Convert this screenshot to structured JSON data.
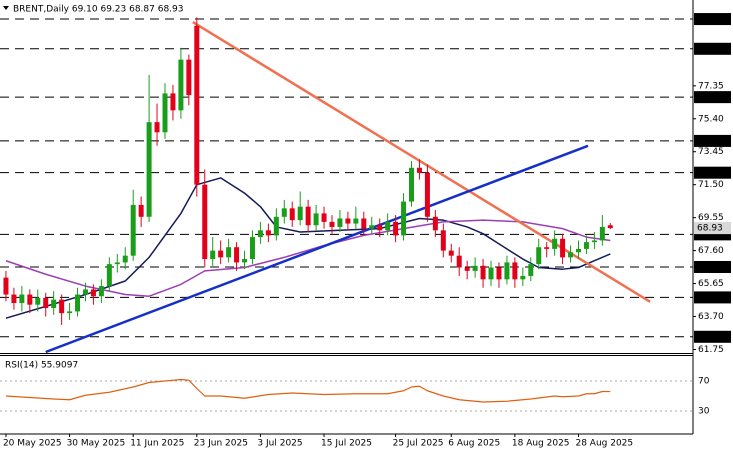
{
  "chart_data": {
    "type": "candlestick",
    "title": "BRENT,Daily  69.10 69.23 68.87 68.93",
    "categories": [
      "20 May 2025",
      null,
      null,
      null,
      null,
      null,
      null,
      null,
      "30 May 2025",
      null,
      null,
      null,
      null,
      null,
      null,
      null,
      "11 Jun 2025",
      null,
      null,
      null,
      null,
      null,
      null,
      null,
      "23 Jun 2025",
      null,
      null,
      null,
      null,
      null,
      null,
      null,
      "3 Jul 2025",
      null,
      null,
      null,
      null,
      null,
      null,
      null,
      "15 Jul 2025",
      null,
      null,
      null,
      null,
      null,
      null,
      null,
      null,
      "25 Jul 2025",
      null,
      null,
      null,
      null,
      null,
      null,
      "6 Aug 2025",
      null,
      null,
      null,
      null,
      null,
      null,
      null,
      "18 Aug 2025",
      null,
      null,
      null,
      null,
      null,
      null,
      null,
      "28 Aug 2025",
      null,
      null,
      null,
      null
    ],
    "open": [
      66.0,
      65.0,
      64.5,
      65.0,
      64.4,
      64.8,
      64.2,
      64.7,
      63.9,
      64.0,
      65.0,
      65.3,
      64.9,
      65.5,
      66.8,
      66.9,
      67.3,
      70.3,
      69.6,
      75.2,
      74.6,
      76.9,
      75.9,
      78.9,
      80.9,
      71.5,
      67.1,
      67.6,
      67.2,
      67.8,
      66.9,
      67.1,
      68.4,
      68.8,
      68.5,
      69.6,
      70.1,
      69.4,
      70.2,
      69.1,
      69.8,
      69.3,
      69.0,
      69.5,
      69.2,
      69.5,
      68.9,
      69.1,
      68.8,
      69.3,
      68.5,
      70.5,
      72.5,
      72.2,
      69.6,
      68.8,
      67.6,
      67.3,
      66.6,
      66.4,
      66.7,
      65.9,
      66.6,
      65.9,
      66.9,
      65.9,
      66.1,
      66.8,
      67.8,
      67.7,
      68.3,
      67.2,
      67.5,
      67.7,
      68.1,
      68.2,
      69.1
    ],
    "high": [
      66.4,
      65.4,
      65.5,
      65.3,
      65.3,
      65.1,
      65.2,
      65.0,
      64.5,
      65.4,
      65.7,
      65.6,
      65.9,
      67.2,
      67.4,
      67.8,
      71.2,
      70.8,
      78.0,
      76.3,
      77.5,
      77.4,
      79.6,
      79.2,
      81.4,
      72.4,
      68.4,
      68.2,
      68.3,
      68.1,
      67.6,
      68.8,
      69.3,
      69.2,
      70.1,
      70.6,
      70.5,
      71.1,
      70.6,
      70.3,
      70.2,
      69.7,
      70.0,
      69.9,
      70.2,
      69.9,
      69.6,
      69.5,
      69.8,
      69.7,
      71.0,
      72.9,
      73.0,
      72.7,
      70.0,
      69.2,
      68.0,
      67.8,
      67.0,
      67.2,
      67.1,
      67.0,
      66.9,
      67.3,
      67.2,
      66.6,
      67.2,
      68.3,
      68.1,
      68.8,
      68.6,
      67.9,
      68.2,
      68.5,
      68.7,
      69.7,
      69.23
    ],
    "low": [
      64.6,
      64.1,
      64.0,
      63.9,
      64.0,
      63.7,
      63.8,
      63.2,
      63.5,
      63.7,
      64.6,
      64.4,
      64.5,
      65.2,
      66.3,
      66.5,
      67.0,
      69.0,
      69.3,
      73.8,
      74.2,
      75.3,
      75.4,
      76.2,
      70.8,
      66.6,
      66.7,
      66.8,
      66.9,
      66.4,
      66.5,
      66.8,
      68.0,
      68.1,
      68.2,
      69.2,
      69.0,
      69.1,
      68.7,
      68.8,
      68.9,
      68.6,
      68.7,
      68.8,
      68.9,
      68.5,
      68.6,
      68.4,
      68.5,
      68.1,
      68.2,
      70.2,
      71.8,
      69.3,
      68.4,
      67.2,
      66.9,
      66.1,
      65.9,
      66.0,
      65.4,
      65.5,
      65.4,
      65.6,
      65.4,
      65.5,
      65.8,
      66.5,
      67.2,
      67.3,
      66.8,
      66.9,
      67.1,
      67.4,
      67.7,
      67.9,
      68.87
    ],
    "close": [
      65.0,
      64.5,
      65.0,
      64.4,
      64.8,
      64.2,
      64.7,
      63.9,
      64.0,
      65.0,
      65.3,
      64.9,
      65.5,
      66.8,
      66.9,
      67.3,
      70.3,
      69.6,
      75.2,
      74.6,
      76.9,
      75.9,
      78.9,
      76.8,
      71.5,
      67.1,
      67.6,
      67.2,
      67.8,
      66.9,
      67.1,
      68.4,
      68.8,
      68.5,
      69.6,
      70.1,
      69.4,
      70.2,
      69.1,
      69.8,
      69.3,
      69.0,
      69.5,
      69.2,
      69.5,
      68.9,
      69.1,
      68.8,
      69.3,
      68.5,
      70.5,
      72.5,
      72.2,
      69.6,
      68.8,
      67.6,
      67.3,
      66.6,
      66.4,
      66.7,
      65.9,
      66.6,
      65.9,
      66.9,
      65.9,
      66.1,
      66.8,
      67.8,
      67.7,
      68.3,
      67.2,
      67.5,
      67.7,
      68.1,
      68.2,
      69.0,
      68.93
    ],
    "up_color": "#1a9e1a",
    "down_color": "#e3001b",
    "xlim": [
      -0.75,
      86.4
    ],
    "ylim": [
      61.6,
      82.25
    ],
    "yticks": [
      {
        "value": 61.75,
        "label": "61.75"
      },
      {
        "value": 63.7,
        "label": "63.70"
      },
      65.65,
      {
        "value": 67.6,
        "label": "67.60"
      },
      69.55,
      {
        "value": 71.5,
        "label": "71.50"
      },
      73.45,
      {
        "value": 75.4,
        "label": "75.40"
      },
      77.35
    ],
    "levels": [
      {
        "value": 81.3,
        "label": "81.30"
      },
      79.54,
      76.68,
      74.09,
      72.21,
      68.56,
      66.63,
      64.83,
      {
        "value": 62.5,
        "label": "62.50"
      }
    ],
    "last_price": 68.93,
    "moving_averages": [
      {
        "color": "#141a5a",
        "x": [
          0,
          5,
          10,
          15,
          18,
          22,
          24,
          27,
          30,
          32,
          34,
          37,
          42,
          47,
          52,
          55,
          58,
          60,
          62,
          65,
          67,
          70,
          72,
          74,
          76
        ],
        "values": [
          63.6,
          64.3,
          65.0,
          65.8,
          67.2,
          69.8,
          71.5,
          71.9,
          71.0,
          70.2,
          69.0,
          68.7,
          68.8,
          68.9,
          69.5,
          69.4,
          69.0,
          68.6,
          68.0,
          67.1,
          66.6,
          66.5,
          66.6,
          67.0,
          67.4
        ]
      },
      {
        "color": "#9b3fb5",
        "x": [
          0,
          5,
          10,
          15,
          18,
          22,
          25,
          30,
          35,
          40,
          45,
          50,
          55,
          60,
          65,
          70,
          73,
          76
        ],
        "values": [
          67.0,
          66.2,
          65.5,
          65.0,
          64.9,
          65.6,
          66.4,
          66.6,
          67.2,
          67.9,
          68.5,
          68.9,
          69.3,
          69.4,
          69.3,
          68.9,
          68.4,
          68.2
        ]
      }
    ],
    "trendlines": [
      {
        "color": "#f07050",
        "x": [
          23.5,
          81
        ],
        "values": [
          81.12,
          64.57
        ]
      },
      {
        "color": "#1530c8",
        "x": [
          5,
          73.2
        ],
        "values": [
          61.6,
          73.8
        ]
      }
    ],
    "rsi": {
      "title": "RSI(14) 55.9097",
      "color": "#e06010",
      "ylim": [
        0,
        100
      ],
      "yticks": [
        30,
        70
      ],
      "x": [
        0,
        3,
        6,
        8,
        10,
        13,
        16,
        18,
        20,
        22,
        23,
        24,
        25,
        27,
        30,
        33,
        36,
        40,
        44,
        48,
        50,
        51,
        52,
        53,
        55,
        57,
        60,
        63,
        66,
        69,
        70,
        72,
        73,
        74,
        75,
        76
      ],
      "values": [
        50,
        48,
        46,
        45,
        51,
        55,
        62,
        68,
        70,
        72,
        71,
        60,
        50,
        50,
        47,
        52,
        54,
        52,
        53,
        53,
        57,
        62,
        63,
        57,
        50,
        45,
        42,
        43,
        46,
        50,
        49,
        50,
        53,
        53,
        56,
        55.9097
      ]
    }
  }
}
